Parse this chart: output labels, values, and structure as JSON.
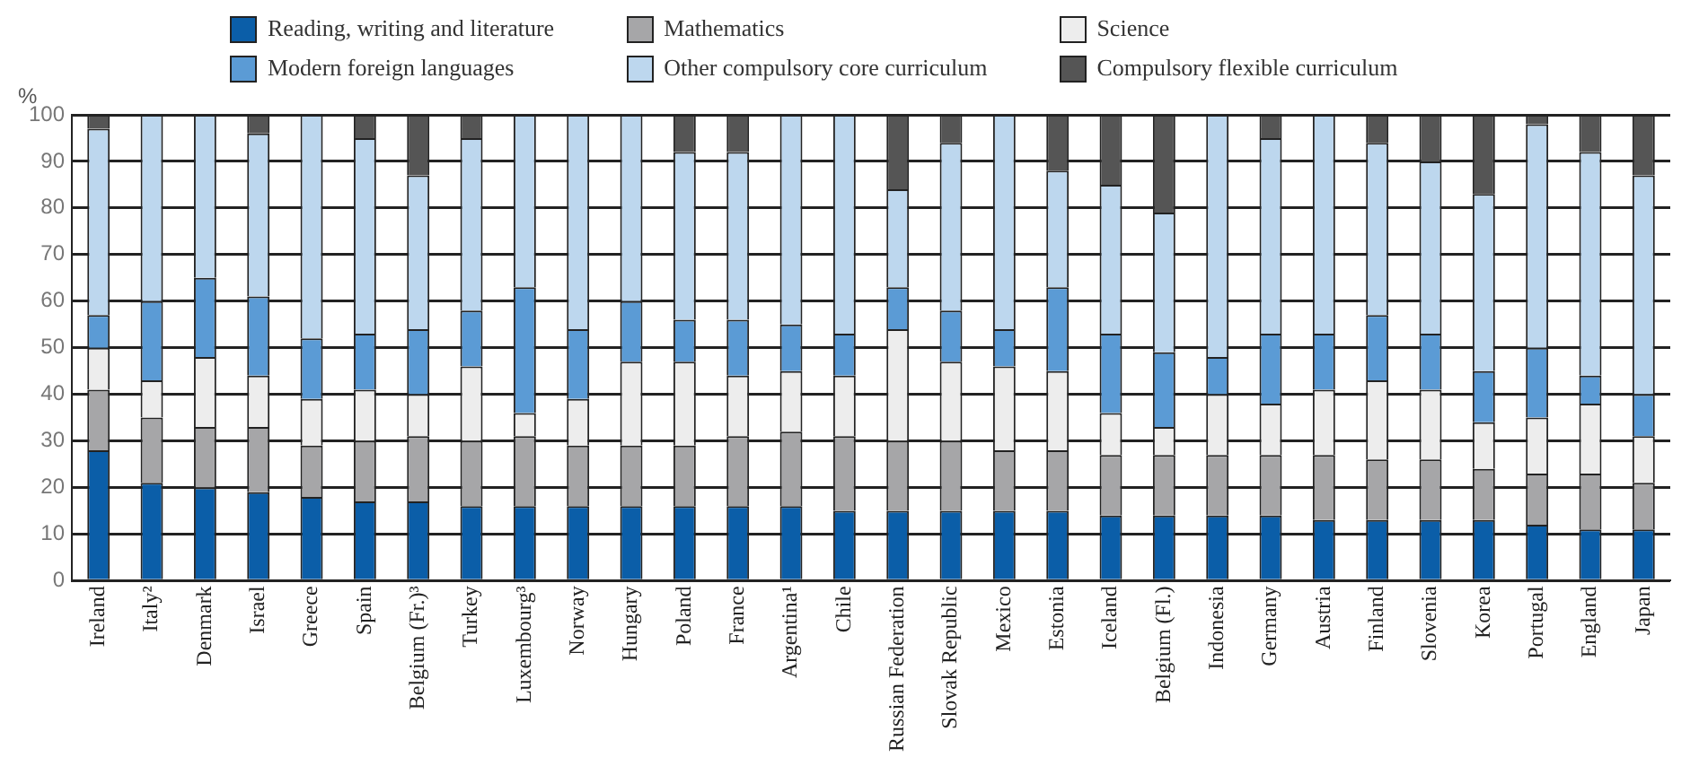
{
  "chart_data": {
    "type": "bar",
    "stacked": true,
    "ylabel": "%",
    "categories": [
      "Ireland",
      "Italy²",
      "Denmark",
      "Israel",
      "Greece",
      "Spain",
      "Belgium (Fr.)³",
      "Turkey",
      "Luxembourg³",
      "Norway",
      "Hungary",
      "Poland",
      "France",
      "Argentina¹",
      "Chile",
      "Russian Federation",
      "Slovak Republic",
      "Mexico",
      "Estonia",
      "Iceland",
      "Belgium (Fl.)",
      "Indonesia",
      "Germany",
      "Austria",
      "Finland",
      "Slovenia",
      "Korea",
      "Portugal",
      "England",
      "Japan"
    ],
    "series": [
      {
        "name": "Reading, writing and literature",
        "color": "#0b5ea8",
        "values": [
          28,
          21,
          20,
          19,
          18,
          17,
          17,
          16,
          16,
          16,
          16,
          16,
          16,
          16,
          15,
          15,
          15,
          15,
          15,
          14,
          14,
          14,
          14,
          13,
          13,
          13,
          13,
          12,
          11,
          11
        ]
      },
      {
        "name": "Mathematics",
        "color": "#a6a6a8",
        "values": [
          13,
          14,
          13,
          14,
          11,
          13,
          14,
          14,
          15,
          13,
          13,
          13,
          15,
          16,
          16,
          15,
          15,
          13,
          13,
          13,
          13,
          13,
          13,
          14,
          13,
          13,
          11,
          11,
          12,
          10
        ]
      },
      {
        "name": "Science",
        "color": "#ededed",
        "values": [
          9,
          8,
          15,
          11,
          10,
          11,
          9,
          16,
          5,
          10,
          18,
          18,
          13,
          13,
          13,
          24,
          17,
          18,
          17,
          9,
          6,
          13,
          11,
          14,
          17,
          15,
          10,
          12,
          15,
          10
        ]
      },
      {
        "name": "Modern foreign languages",
        "color": "#5b9bd5",
        "values": [
          7,
          17,
          17,
          17,
          13,
          12,
          14,
          12,
          27,
          15,
          13,
          9,
          12,
          10,
          9,
          9,
          11,
          8,
          18,
          17,
          16,
          8,
          15,
          12,
          14,
          12,
          11,
          15,
          6,
          9
        ]
      },
      {
        "name": "Other compulsory core curriculum",
        "color": "#bdd7ee",
        "values": [
          40,
          40,
          35,
          35,
          48,
          42,
          33,
          37,
          37,
          46,
          40,
          36,
          36,
          45,
          47,
          21,
          36,
          46,
          25,
          32,
          30,
          52,
          42,
          47,
          37,
          37,
          38,
          48,
          48,
          47
        ]
      },
      {
        "name": "Compulsory flexible curriculum",
        "color": "#555555",
        "values": [
          3,
          0,
          0,
          4,
          0,
          5,
          13,
          5,
          0,
          0,
          0,
          8,
          8,
          0,
          0,
          16,
          6,
          0,
          12,
          15,
          21,
          0,
          5,
          0,
          6,
          10,
          17,
          2,
          8,
          13
        ]
      }
    ],
    "ylim": [
      0,
      100
    ],
    "yticks": [
      0,
      10,
      20,
      30,
      40,
      50,
      60,
      70,
      80,
      90,
      100
    ],
    "grid": "y",
    "legend": "top"
  }
}
